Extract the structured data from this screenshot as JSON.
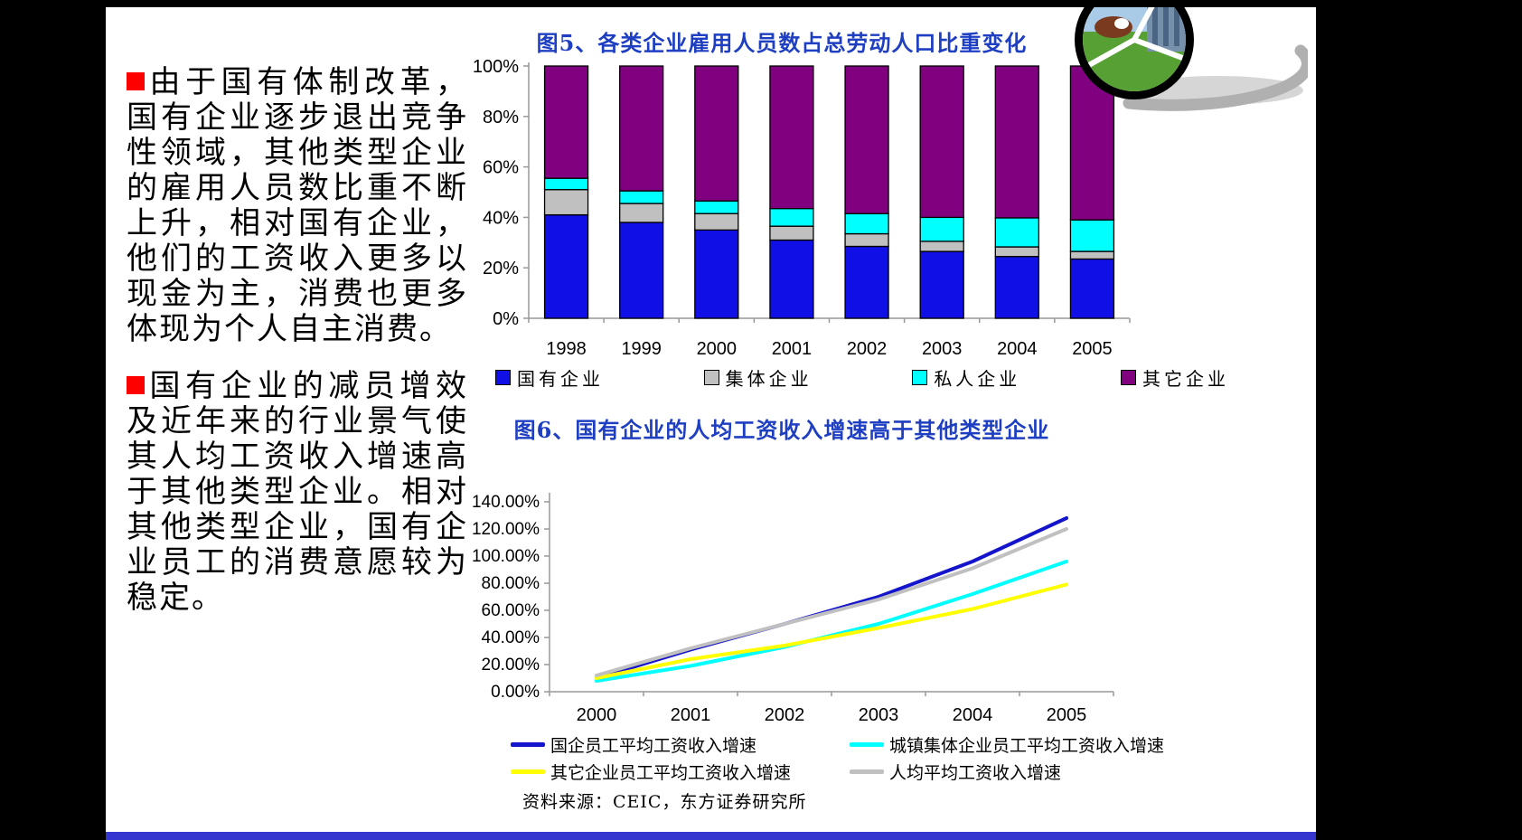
{
  "slide": {
    "source_note": "资料来源：CEIC，东方证券研究所"
  },
  "left_panel": {
    "paragraphs": [
      "由于国有体制改革，国有企业逐步退出竞争性领域，其他类型企业的雇用人员数比重不断上升，相对国有企业，他们的工资收入更多以现金为主，消费也更多体现为个人自主消费。",
      "国有企业的减员增效及近年来的行业景气使其人均工资收入增速高于其他类型企业。相对其他类型企业，国有企业员工的消费意愿较为稳定。"
    ]
  },
  "chart_data": [
    {
      "id": "fig5",
      "type": "bar",
      "stacked": true,
      "title": "图5、各类企业雇用人员数占总劳动人口比重变化",
      "categories": [
        "1998",
        "1999",
        "2000",
        "2001",
        "2002",
        "2003",
        "2004",
        "2005"
      ],
      "series": [
        {
          "name": "国有企业",
          "color": "#0F0FE6",
          "values": [
            41,
            38,
            35,
            31,
            28.5,
            26.5,
            24.5,
            23.5
          ]
        },
        {
          "name": "集体企业",
          "color": "#C0C0C0",
          "values": [
            10,
            7.5,
            6.5,
            5.5,
            5,
            4,
            3.8,
            3
          ]
        },
        {
          "name": "私人企业",
          "color": "#00FFFF",
          "values": [
            4.5,
            5,
            5,
            7,
            8,
            9.5,
            11.5,
            12.5
          ]
        },
        {
          "name": "其它企业",
          "color": "#800080",
          "values": [
            44.5,
            49.5,
            53.5,
            56.5,
            58.5,
            60,
            60.2,
            61
          ]
        }
      ],
      "ylim": [
        0,
        100
      ],
      "ytick_step": 20,
      "ytick_format": "percent_int",
      "legend_position": "bottom",
      "grid": false
    },
    {
      "id": "fig6",
      "type": "line",
      "title": "图6、国有企业的人均工资收入增速高于其他类型企业",
      "x": [
        "2000",
        "2001",
        "2002",
        "2003",
        "2004",
        "2005"
      ],
      "series": [
        {
          "name": "国企员工平均工资收入增速",
          "color": "#1414CC",
          "values": [
            10,
            31,
            50,
            70,
            96,
            128
          ]
        },
        {
          "name": "城镇集体企业员工平均工资收入增速",
          "color": "#00FFFF",
          "values": [
            8,
            19,
            33,
            50,
            72,
            96
          ]
        },
        {
          "name": "其它企业员工平均工资收入增速",
          "color": "#FFFF00",
          "values": [
            10,
            24,
            34,
            47,
            61,
            79
          ]
        },
        {
          "name": "人均平均工资收入增速",
          "color": "#C0C0C0",
          "values": [
            12,
            32,
            50,
            68,
            91,
            120
          ]
        }
      ],
      "ylim": [
        0,
        140
      ],
      "ytick_step": 20,
      "ytick_format": "percent_2dp",
      "legend_position": "bottom",
      "grid": false
    }
  ],
  "colors": {
    "title_blue": "#1F3FC2",
    "bullet_red": "#FF0000",
    "bottom_bar_blue": "#3535CF",
    "page_background": "#000000",
    "slide_background": "#FFFFFF",
    "axis_gray": "#999999"
  }
}
